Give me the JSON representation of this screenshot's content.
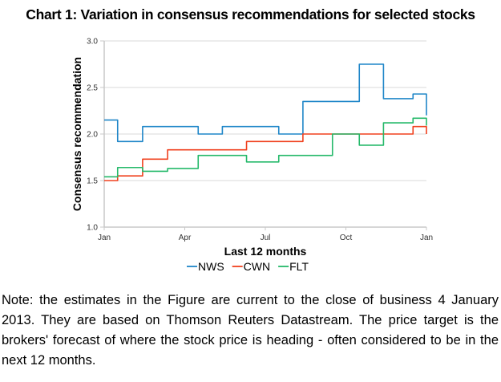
{
  "title": "Chart 1: Variation in consensus recommendations for selected stocks",
  "note": "Note: the estimates in the Figure are current to the close of business 4 January 2013. They are based on Thomson Reuters Datastream. The price target is the brokers' forecast of where the stock price is heading - often considered to be in the next 12 months.",
  "chart_data": {
    "type": "line",
    "step": true,
    "title": "Chart 1: Variation in consensus recommendations for selected stocks",
    "xlabel": "Last 12 months",
    "ylabel": "Consensus recommendation",
    "xlim": [
      0,
      12
    ],
    "ylim": [
      1.0,
      3.0
    ],
    "x_unit": "months since Jan",
    "x_ticks": [
      {
        "value": 0,
        "label": "Jan"
      },
      {
        "value": 3,
        "label": "Apr"
      },
      {
        "value": 6,
        "label": "Jul"
      },
      {
        "value": 9,
        "label": "Oct"
      },
      {
        "value": 12,
        "label": "Jan"
      }
    ],
    "y_ticks": [
      {
        "value": 1.0,
        "label": "1.0"
      },
      {
        "value": 1.5,
        "label": "1.5"
      },
      {
        "value": 2.0,
        "label": "2.0"
      },
      {
        "value": 2.5,
        "label": "2.5"
      },
      {
        "value": 3.0,
        "label": "3.0"
      }
    ],
    "grid": "horizontal",
    "legend_position": "bottom",
    "series": [
      {
        "name": "NWS",
        "color": "#1f86c8",
        "points": [
          [
            0,
            2.15
          ],
          [
            0.5,
            1.92
          ],
          [
            1.43,
            2.08
          ],
          [
            3.5,
            2.0
          ],
          [
            4.4,
            2.08
          ],
          [
            6.5,
            2.0
          ],
          [
            7.4,
            2.35
          ],
          [
            9.5,
            2.75
          ],
          [
            10.4,
            2.38
          ],
          [
            11.5,
            2.43
          ],
          [
            12,
            2.2
          ]
        ]
      },
      {
        "name": "CWN",
        "color": "#f0401e",
        "points": [
          [
            0,
            1.5
          ],
          [
            0.5,
            1.55
          ],
          [
            1.43,
            1.73
          ],
          [
            2.36,
            1.83
          ],
          [
            5.3,
            1.92
          ],
          [
            7.4,
            2.0
          ],
          [
            11.5,
            2.08
          ],
          [
            12,
            2.0
          ]
        ]
      },
      {
        "name": "FLT",
        "color": "#25b96a",
        "points": [
          [
            0,
            1.54
          ],
          [
            0.5,
            1.64
          ],
          [
            1.43,
            1.6
          ],
          [
            2.36,
            1.63
          ],
          [
            3.5,
            1.77
          ],
          [
            5.3,
            1.7
          ],
          [
            6.5,
            1.77
          ],
          [
            8.5,
            2.0
          ],
          [
            9.5,
            1.88
          ],
          [
            10.4,
            2.12
          ],
          [
            11.5,
            2.17
          ],
          [
            12,
            2.09
          ]
        ]
      }
    ]
  }
}
